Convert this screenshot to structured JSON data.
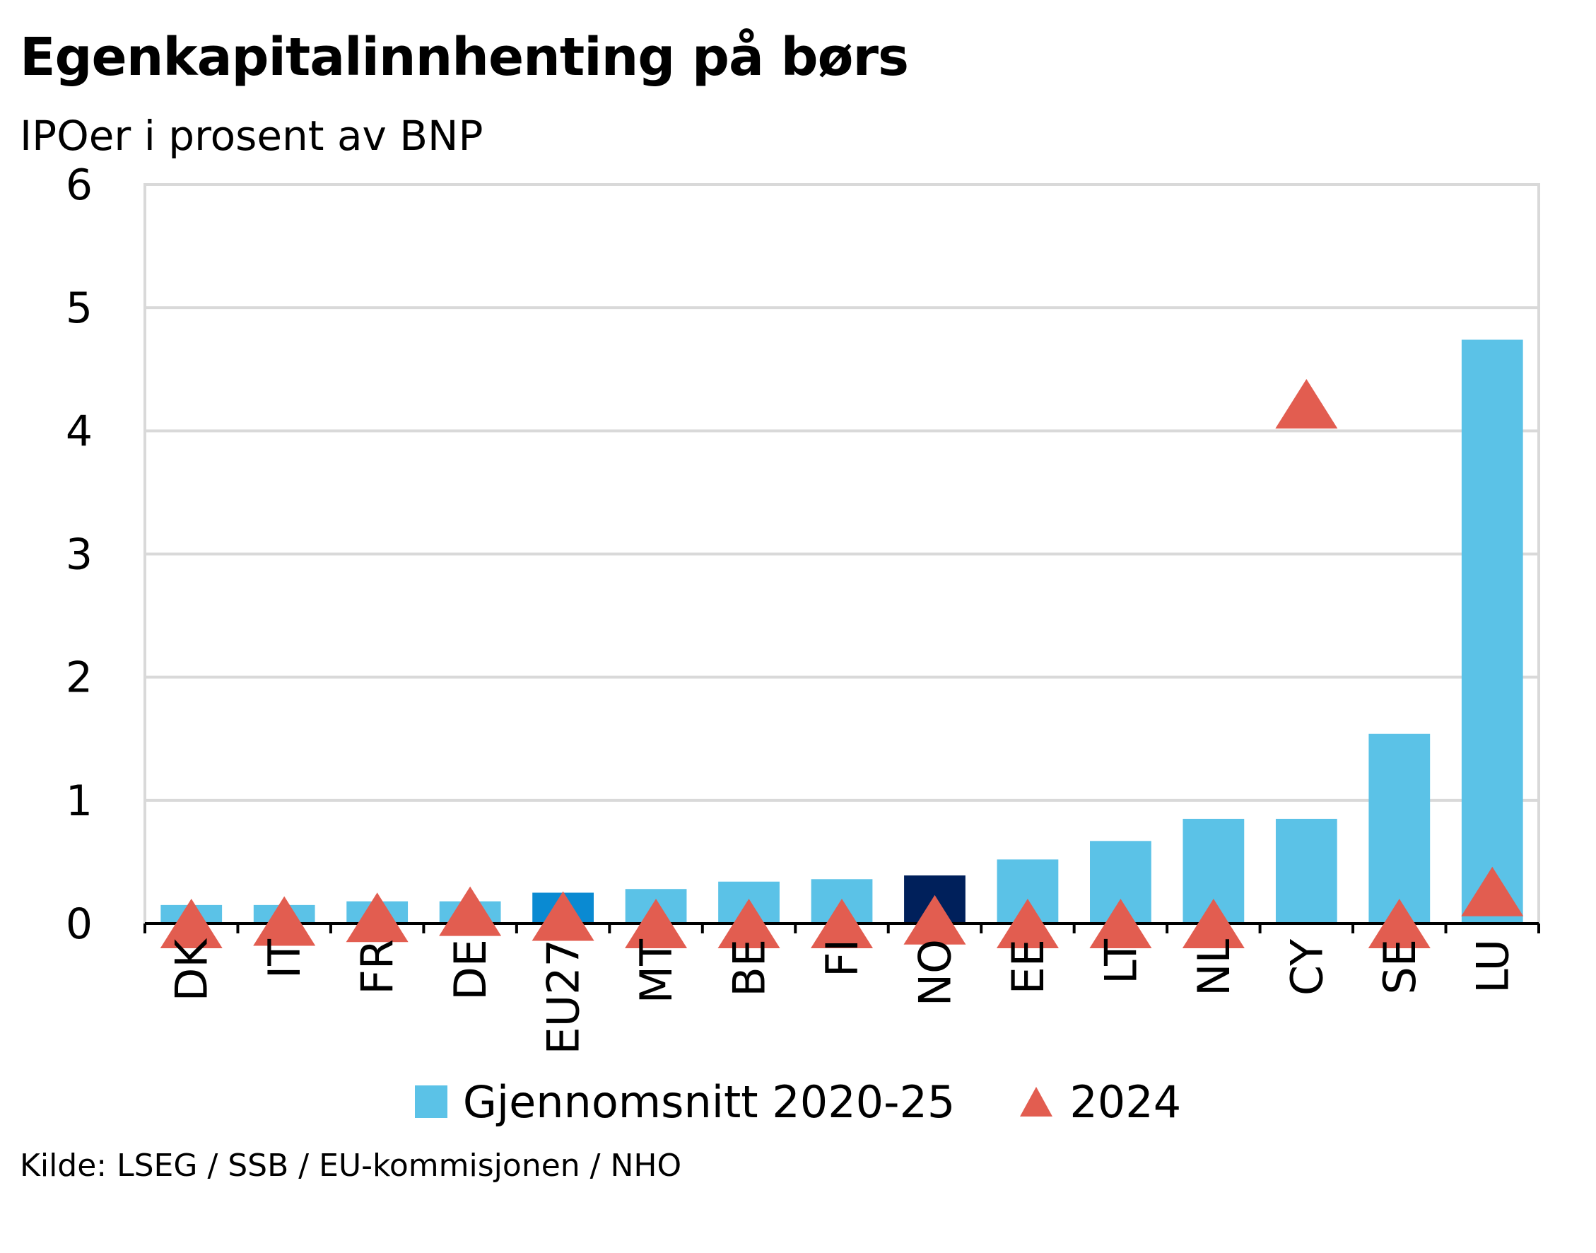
{
  "chart_data": {
    "type": "bar",
    "title": "Egenkapitalinnhenting på børs",
    "subtitle": "IPOer i prosent av BNP",
    "xlabel": "",
    "ylabel": "",
    "ylim": [
      0,
      6
    ],
    "yticks": [
      0,
      1,
      2,
      3,
      4,
      5,
      6
    ],
    "grid": true,
    "categories": [
      "DK",
      "IT",
      "FR",
      "DE",
      "EU27",
      "MT",
      "BE",
      "FI",
      "NO",
      "EE",
      "LT",
      "NL",
      "CY",
      "SE",
      "LU"
    ],
    "series": [
      {
        "name": "Gjennomsnitt 2020-25",
        "kind": "bar",
        "color": "#5bc2e7",
        "highlight_colors": {
          "EU27": "#0a8ad2",
          "NO": "#00205b"
        },
        "values": [
          0.15,
          0.15,
          0.18,
          0.18,
          0.25,
          0.28,
          0.34,
          0.36,
          0.39,
          0.52,
          0.67,
          0.85,
          0.85,
          1.54,
          4.74
        ]
      },
      {
        "name": "2024",
        "kind": "marker",
        "marker": "triangle",
        "color": "#e25d50",
        "values": [
          0.0,
          0.02,
          0.05,
          0.1,
          0.06,
          0.0,
          0.0,
          0.0,
          0.03,
          0.0,
          0.0,
          0.0,
          4.22,
          0.0,
          0.26
        ]
      }
    ],
    "source": "Kilde: LSEG  / SSB  / EU-kommisjonen / NHO"
  }
}
